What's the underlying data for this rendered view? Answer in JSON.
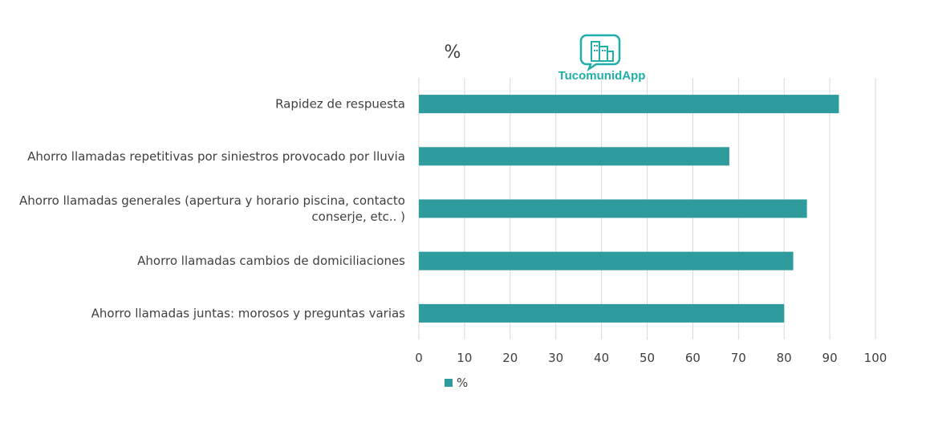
{
  "logo": {
    "text": "TucomunidApp",
    "color": "#1faea8"
  },
  "chart_data": {
    "type": "bar",
    "orientation": "horizontal",
    "title": "%",
    "categories": [
      [
        "Rapidez de respuesta"
      ],
      [
        "Ahorro llamadas repetitivas por siniestros provocado por lluvia"
      ],
      [
        "Ahorro llamadas generales (apertura y  horario piscina, contacto",
        "conserje, etc.. )"
      ],
      [
        "Ahorro llamadas cambios de domiciliaciones"
      ],
      [
        "Ahorro llamadas juntas: morosos y preguntas varias"
      ]
    ],
    "series": [
      {
        "name": "%",
        "values": [
          92,
          68,
          85,
          82,
          80
        ],
        "color": "#2e9c9c"
      }
    ],
    "xlim": [
      0,
      100
    ],
    "xticks": [
      0,
      10,
      20,
      30,
      40,
      50,
      60,
      70,
      80,
      90,
      100
    ],
    "xlabel": "",
    "ylabel": "",
    "grid": "vertical",
    "legend": "bottom-left"
  }
}
